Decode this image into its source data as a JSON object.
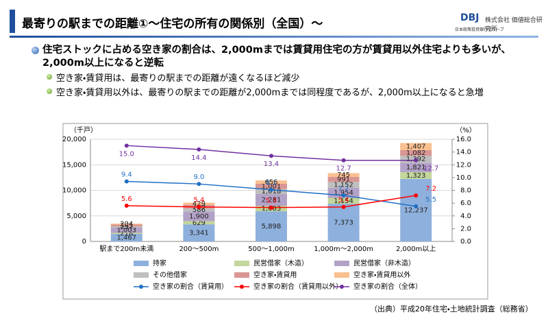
{
  "header": {
    "title": "最寄りの駅までの距離①～住宅の所有の関係別（全国）～",
    "logo": "DBJ",
    "company": "株式会社 価値総合研究所",
    "group": "日本政策投資銀行グループ"
  },
  "bullets": {
    "main": "住宅ストックに占める空き家の割合は、2,000mまでは賃貸用住宅の方が賃貸用以外住宅よりも多いが、2,000m以上になると逆転",
    "sub": [
      "空き家・賃貸用は、最寄りの駅までの距離が遠くなるほど減少",
      "空き家・賃貸用以外は、最寄りの駅までの距離が2,000mまでは同程度であるが、2,000m以上になると急増"
    ]
  },
  "source": "（出典）平成20年住宅・土地統計調査（総務省）",
  "chart_data": {
    "type": "bar",
    "stacked": true,
    "y_label": "（千戸）",
    "y2_label": "（%）",
    "categories": [
      "駅まで200m未満",
      "200～500m",
      "500～1,000m",
      "1,000m～2,000m",
      "2,000m以上"
    ],
    "ylim": [
      0,
      20000
    ],
    "yticks": [
      0,
      {
        "value": 5000,
        "label": "5,000"
      },
      {
        "value": 10000,
        "label": "10,000"
      },
      {
        "value": 15000,
        "label": "15,000"
      },
      {
        "value": 20000,
        "label": "20,000"
      }
    ],
    "y2lim": [
      0,
      16
    ],
    "y2ticks": [
      {
        "value": 0,
        "label": "0.0"
      },
      {
        "value": 2,
        "label": "2.0"
      },
      {
        "value": 4,
        "label": "4.0"
      },
      {
        "value": 6,
        "label": "6.0"
      },
      {
        "value": 8,
        "label": "8.0"
      },
      {
        "value": 10,
        "label": "10.0"
      },
      {
        "value": 12,
        "label": "12.0"
      },
      {
        "value": 14,
        "label": "14.0"
      },
      {
        "value": 16,
        "label": "16.0"
      }
    ],
    "grid": true,
    "series": [
      {
        "name": "持家",
        "type": "bar",
        "color": "#8eb0dc",
        "values": [
          1467,
          3341,
          5898,
          7373,
          12237
        ],
        "value_labels": [
          "1,467",
          "3,341",
          "5,898",
          "7,373",
          "12,237"
        ]
      },
      {
        "name": "民営借家（木造）",
        "type": "bar",
        "color": "#c3d69b",
        "values": [
          218,
          629,
          1083,
          1154,
          1323
        ],
        "value_labels": [
          "218",
          "629",
          "1,083",
          "1,154",
          "1,323"
        ]
      },
      {
        "name": "民営借家（非木造）",
        "type": "bar",
        "color": "#b3a2c7",
        "values": [
          1003,
          1900,
          2281,
          1954,
          1821
        ],
        "value_labels": [
          "1,003",
          "1,900",
          "2,281",
          "1,954",
          "1,821"
        ]
      },
      {
        "name": "その他借家",
        "type": "bar",
        "color": "#bfbfbf",
        "values": [
          257,
          586,
          1018,
          1152,
          1392
        ],
        "value_labels": [
          "257",
          "586",
          "1,018",
          "1,152",
          "1,392"
        ]
      },
      {
        "name": "空き家・賃貸用",
        "type": "bar",
        "color": "#d99694",
        "values": [
          343,
          709,
          1001,
          991,
          1082
        ],
        "value_labels": [
          "343",
          "709",
          "1,001",
          "991",
          "1,082"
        ]
      },
      {
        "name": "空き家・賃貸用以外",
        "type": "bar",
        "color": "#fac090",
        "values": [
          204,
          429,
          656,
          745,
          1407
        ],
        "value_labels": [
          "204",
          "429",
          "656",
          "745",
          "1,407"
        ]
      },
      {
        "name": "空き家の割合（賃貸用）",
        "type": "line",
        "axis": "y2",
        "color": "#1f6fc5",
        "values": [
          9.4,
          9.0,
          8.1,
          7.2,
          5.5
        ],
        "value_labels": [
          "9.4",
          "9.0",
          "8.1",
          "7.2",
          "5.5"
        ]
      },
      {
        "name": "空き家の割合（賃貸用以外）",
        "type": "line",
        "axis": "y2",
        "color": "#ff0000",
        "values": [
          5.6,
          5.4,
          5.3,
          5.4,
          7.2
        ],
        "value_labels": [
          "5.6",
          "5.4",
          "5.3",
          "5.4",
          "7.2"
        ]
      },
      {
        "name": "空き家の割合（全体）",
        "type": "line",
        "axis": "y2",
        "color": "#7030a0",
        "values": [
          15.0,
          14.4,
          13.4,
          12.7,
          12.7
        ],
        "value_labels": [
          "15.0",
          "14.4",
          "13.4",
          "12.7",
          "12.7"
        ]
      }
    ]
  }
}
